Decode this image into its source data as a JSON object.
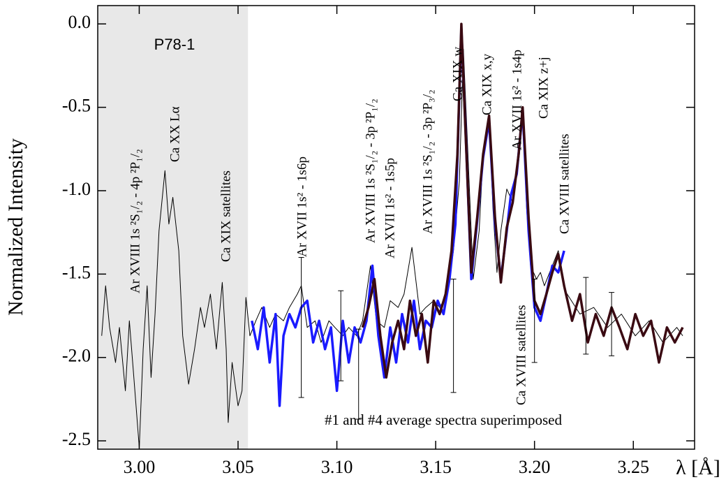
{
  "chart_data": {
    "type": "line",
    "ylabel": "Normalized Intensity",
    "xlabel": "λ [Å]",
    "panel_label": "P78-1",
    "note": "#1 and #4 average spectra superimposed",
    "shade_x": [
      2.979,
      3.055
    ],
    "shade_color": "#e8e8e8",
    "xlim": [
      2.979,
      3.281
    ],
    "ylim": [
      -2.55,
      0.11
    ],
    "xticks": [
      {
        "value": 3.0,
        "label": "3.00"
      },
      3.05,
      {
        "value": 3.1,
        "label": "3.10"
      },
      3.15,
      {
        "value": 3.2,
        "label": "3.20"
      },
      3.25
    ],
    "yticks": [
      {
        "value": 0,
        "label": "0.0"
      },
      -0.5,
      {
        "value": -1,
        "label": "-1.0"
      },
      -1.5,
      {
        "value": -2,
        "label": "-2.0"
      },
      -2.5
    ],
    "annotations": [
      "Ar XVIII 1s ²S₁/₂ - 4p ²P₁/₂",
      "Ca XX Lα",
      "Ca XIX satellites",
      "Ar XVII 1s² - 1s6p",
      "Ar XVIII 1s ²S₁/₂ - 3p ²P₁/₂",
      "Ar XVII 1s² - 1s5p",
      "Ar XVIII 1s ²S₁/₂ - 3p ²P₃/₂",
      "Ca XIX w",
      "Ca XIX x,y",
      "Ar XVII 1s² - 1s4p",
      "Ca XIX z+j",
      "Ca XVIII satellites",
      "Ca XVIII satellites"
    ],
    "series": [
      {
        "color": "#000000",
        "width": 1,
        "x": [
          2.981,
          2.983,
          2.985,
          2.988,
          2.99,
          2.993,
          2.995,
          2.997,
          3.0,
          3.002,
          3.004,
          3.006,
          3.008,
          3.01,
          3.013,
          3.015,
          3.017,
          3.02,
          3.022,
          3.025,
          3.028,
          3.031,
          3.033,
          3.036,
          3.039,
          3.042,
          3.044,
          3.045,
          3.047,
          3.05,
          3.052,
          3.054,
          3.056,
          3.059,
          3.062,
          3.066,
          3.069,
          3.073,
          3.076,
          3.08,
          3.082,
          3.085,
          3.089,
          3.092,
          3.096,
          3.099,
          3.103,
          3.106,
          3.11,
          3.113,
          3.117,
          3.12,
          3.124,
          3.127,
          3.131,
          3.134,
          3.138,
          3.142,
          3.145,
          3.149,
          3.152,
          3.156,
          3.159,
          3.162,
          3.164,
          3.166,
          3.169,
          3.172,
          3.174,
          3.177,
          3.179,
          3.181,
          3.183,
          3.186,
          3.189,
          3.192,
          3.194,
          3.196,
          3.198,
          3.201,
          3.203,
          3.205,
          3.209,
          3.212,
          3.216,
          3.223,
          3.23,
          3.237,
          3.244,
          3.251,
          3.258,
          3.265,
          3.272,
          3.275
        ],
        "values": [
          -1.87,
          -1.57,
          -1.82,
          -2.03,
          -1.82,
          -2.2,
          -1.78,
          -2.08,
          -2.54,
          -1.95,
          -1.57,
          -2.12,
          -1.74,
          -1.24,
          -0.88,
          -1.2,
          -1.04,
          -1.36,
          -1.87,
          -2.16,
          -1.95,
          -1.7,
          -1.82,
          -1.62,
          -1.95,
          -1.55,
          -1.95,
          -2.39,
          -2.03,
          -2.29,
          -2.2,
          -1.64,
          -1.87,
          -1.78,
          -1.7,
          -1.82,
          -1.74,
          -1.78,
          -1.7,
          -1.62,
          -1.57,
          -1.82,
          -1.78,
          -1.91,
          -1.78,
          -1.82,
          -1.87,
          -1.82,
          -1.87,
          -1.78,
          -1.45,
          -1.78,
          -1.82,
          -1.66,
          -1.7,
          -1.62,
          -1.34,
          -1.74,
          -1.7,
          -1.66,
          -1.7,
          -1.62,
          -1.36,
          -0.94,
          -0.15,
          -0.69,
          -1.53,
          -1.24,
          -0.78,
          -0.57,
          -1.11,
          -1.49,
          -1.24,
          -0.99,
          -1.07,
          -0.82,
          -0.52,
          -1.11,
          -1.45,
          -1.53,
          -1.49,
          -1.57,
          -1.45,
          -1.36,
          -1.61,
          -1.74,
          -1.7,
          -1.82,
          -1.74,
          -1.87,
          -1.78,
          -1.91,
          -1.82,
          -1.87
        ]
      },
      {
        "color": "#1a1aff",
        "width": 3.5,
        "x": [
          3.057,
          3.06,
          3.063,
          3.066,
          3.069,
          3.071,
          3.073,
          3.076,
          3.079,
          3.082,
          3.085,
          3.088,
          3.091,
          3.094,
          3.097,
          3.1,
          3.103,
          3.106,
          3.109,
          3.112,
          3.115,
          3.118,
          3.121,
          3.124,
          3.127,
          3.13,
          3.133,
          3.136,
          3.139,
          3.142,
          3.145,
          3.148,
          3.151,
          3.154,
          3.157,
          3.16,
          3.163,
          3.165,
          3.168,
          3.171,
          3.174,
          3.177,
          3.18,
          3.183,
          3.186,
          3.188,
          3.191,
          3.194,
          3.197,
          3.2,
          3.203,
          3.206,
          3.209,
          3.212,
          3.215
        ],
        "values": [
          -1.78,
          -1.95,
          -1.7,
          -2.03,
          -1.74,
          -2.29,
          -1.87,
          -1.74,
          -1.82,
          -1.7,
          -1.66,
          -1.91,
          -1.78,
          -1.95,
          -1.82,
          -2.2,
          -1.78,
          -2.03,
          -1.82,
          -1.91,
          -1.78,
          -1.45,
          -1.87,
          -2.12,
          -1.82,
          -2.03,
          -1.74,
          -1.91,
          -1.66,
          -1.95,
          -1.78,
          -1.82,
          -1.66,
          -1.74,
          -1.53,
          -1.2,
          -0.03,
          -0.6,
          -1.53,
          -1.18,
          -0.8,
          -0.58,
          -1.2,
          -1.53,
          -1.24,
          -1.03,
          -0.9,
          -0.52,
          -1.24,
          -1.7,
          -1.78,
          -1.62,
          -1.45,
          -1.49,
          -1.36
        ]
      },
      {
        "color": "#3a0a12",
        "width": 3.5,
        "x": [
          3.113,
          3.116,
          3.119,
          3.122,
          3.125,
          3.128,
          3.131,
          3.134,
          3.137,
          3.14,
          3.143,
          3.146,
          3.149,
          3.152,
          3.155,
          3.158,
          3.161,
          3.163,
          3.165,
          3.168,
          3.171,
          3.174,
          3.177,
          3.18,
          3.183,
          3.186,
          3.189,
          3.192,
          3.194,
          3.197,
          3.2,
          3.203,
          3.206,
          3.209,
          3.212,
          3.215,
          3.219,
          3.223,
          3.227,
          3.231,
          3.235,
          3.239,
          3.243,
          3.247,
          3.251,
          3.255,
          3.259,
          3.263,
          3.267,
          3.271,
          3.275
        ],
        "values": [
          -1.82,
          -1.7,
          -1.53,
          -1.87,
          -2.12,
          -1.91,
          -1.78,
          -1.95,
          -1.66,
          -1.87,
          -1.74,
          -2.03,
          -1.66,
          -1.74,
          -1.62,
          -1.36,
          -0.78,
          0.0,
          -0.62,
          -1.49,
          -1.16,
          -0.78,
          -0.55,
          -1.16,
          -1.55,
          -1.22,
          -1.07,
          -0.78,
          -0.5,
          -1.16,
          -1.66,
          -1.74,
          -1.62,
          -1.49,
          -1.38,
          -1.57,
          -1.78,
          -1.62,
          -1.91,
          -1.74,
          -1.87,
          -1.7,
          -1.82,
          -1.95,
          -1.74,
          -1.87,
          -1.78,
          -2.03,
          -1.82,
          -1.91,
          -1.82
        ]
      }
    ],
    "errorbars": {
      "x": [
        3.082,
        3.102,
        3.111,
        3.159,
        3.2,
        3.226,
        3.239
      ],
      "values": [
        -1.82,
        -1.87,
        -2.1,
        -1.87,
        -1.78,
        -1.75,
        -1.8
      ],
      "errors": [
        0.42,
        0.27,
        0.27,
        0.34,
        0.25,
        0.23,
        0.19
      ]
    }
  }
}
